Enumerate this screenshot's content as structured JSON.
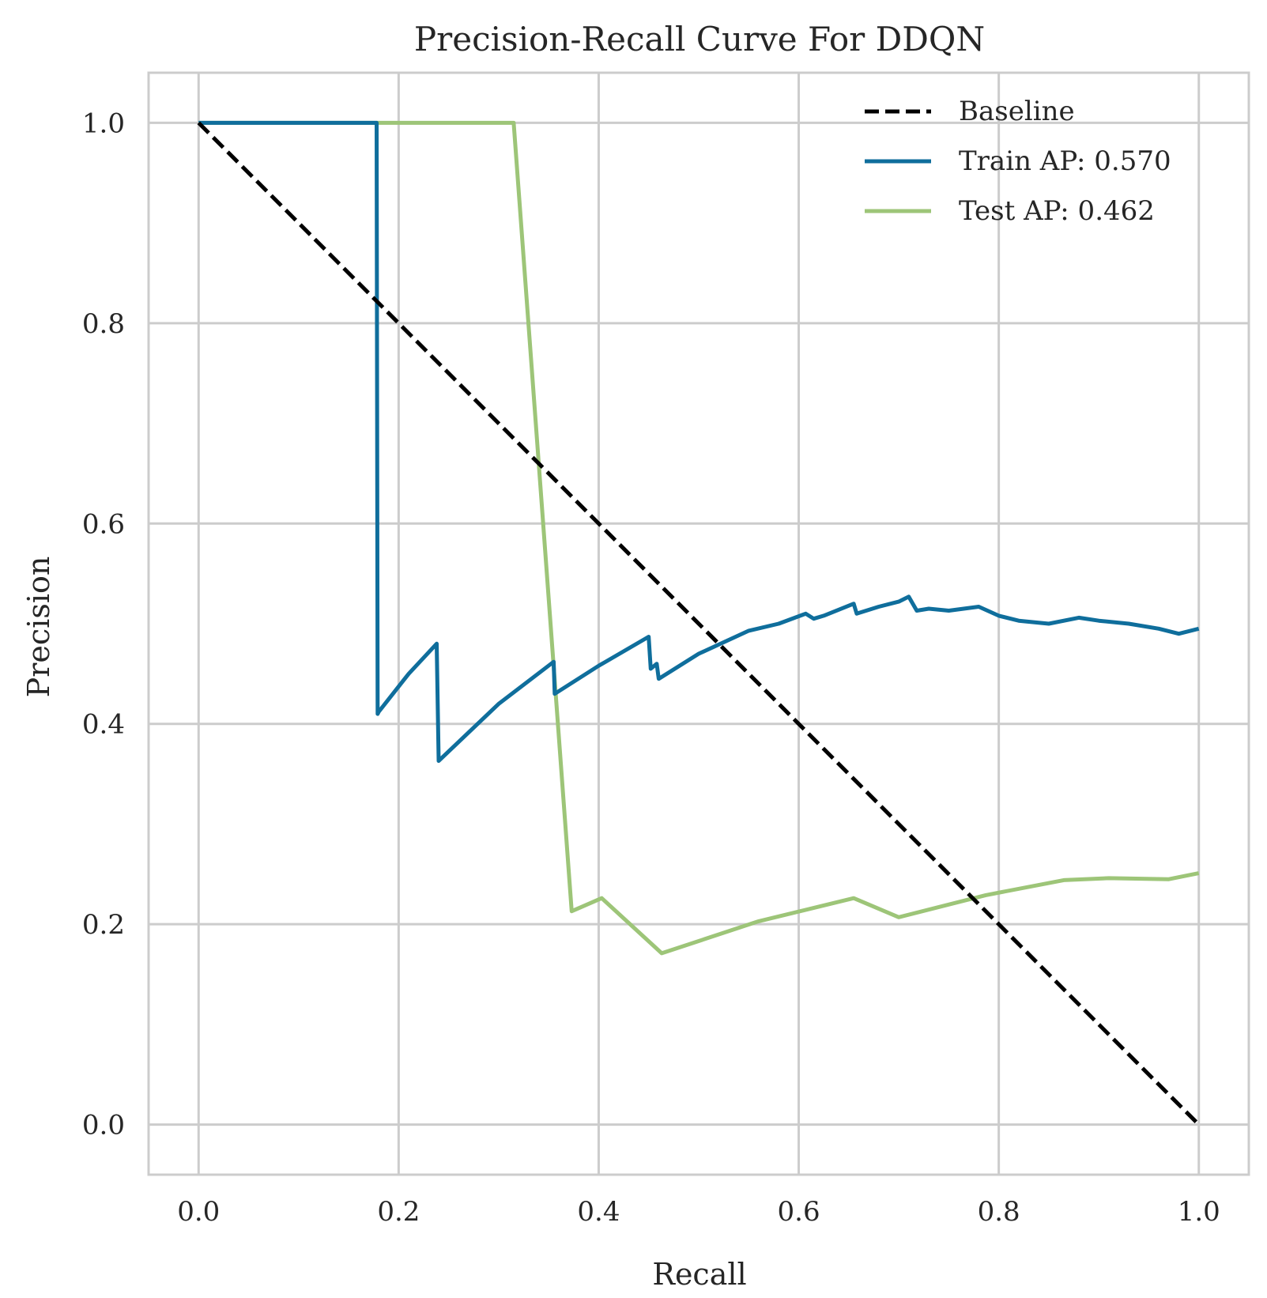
{
  "chart_data": {
    "type": "line",
    "title": "Precision-Recall Curve For DDQN",
    "xlabel": "Recall",
    "ylabel": "Precision",
    "xlim": [
      -0.05,
      1.05
    ],
    "ylim": [
      -0.05,
      1.05
    ],
    "xticks": [
      0.0,
      0.2,
      0.4,
      0.6,
      0.8,
      1.0
    ],
    "yticks": [
      0.0,
      0.2,
      0.4,
      0.6,
      0.8,
      1.0
    ],
    "xtick_labels": [
      "0.0",
      "0.2",
      "0.4",
      "0.6",
      "0.8",
      "1.0"
    ],
    "ytick_labels": [
      "0.0",
      "0.2",
      "0.4",
      "0.6",
      "0.8",
      "1.0"
    ],
    "grid": true,
    "legend_position": "top-right",
    "series": [
      {
        "name": "Baseline",
        "color": "#000000",
        "style": "dashed",
        "x": [
          0.0,
          1.0
        ],
        "y": [
          1.0,
          0.0
        ]
      },
      {
        "name": "Train AP: 0.570",
        "color": "#0f6e9c",
        "style": "solid",
        "x": [
          0.0,
          0.178,
          0.179,
          0.18,
          0.21,
          0.238,
          0.24,
          0.3,
          0.355,
          0.356,
          0.4,
          0.45,
          0.452,
          0.458,
          0.46,
          0.5,
          0.55,
          0.58,
          0.607,
          0.615,
          0.625,
          0.655,
          0.658,
          0.68,
          0.7,
          0.71,
          0.718,
          0.73,
          0.75,
          0.78,
          0.8,
          0.82,
          0.85,
          0.88,
          0.9,
          0.93,
          0.96,
          0.98,
          1.0
        ],
        "y": [
          1.0,
          1.0,
          0.41,
          0.412,
          0.45,
          0.48,
          0.363,
          0.42,
          0.462,
          0.43,
          0.458,
          0.487,
          0.455,
          0.46,
          0.445,
          0.47,
          0.493,
          0.5,
          0.51,
          0.505,
          0.508,
          0.52,
          0.51,
          0.517,
          0.522,
          0.527,
          0.513,
          0.515,
          0.513,
          0.517,
          0.508,
          0.503,
          0.5,
          0.506,
          0.503,
          0.5,
          0.495,
          0.49,
          0.495
        ]
      },
      {
        "name": "Test AP: 0.462",
        "color": "#9dc578",
        "style": "solid",
        "x": [
          0.0,
          0.315,
          0.373,
          0.403,
          0.463,
          0.56,
          0.655,
          0.7,
          0.787,
          0.865,
          0.91,
          0.97,
          1.0
        ],
        "y": [
          1.0,
          1.0,
          0.213,
          0.226,
          0.171,
          0.203,
          0.226,
          0.207,
          0.229,
          0.244,
          0.246,
          0.245,
          0.251
        ]
      }
    ]
  }
}
